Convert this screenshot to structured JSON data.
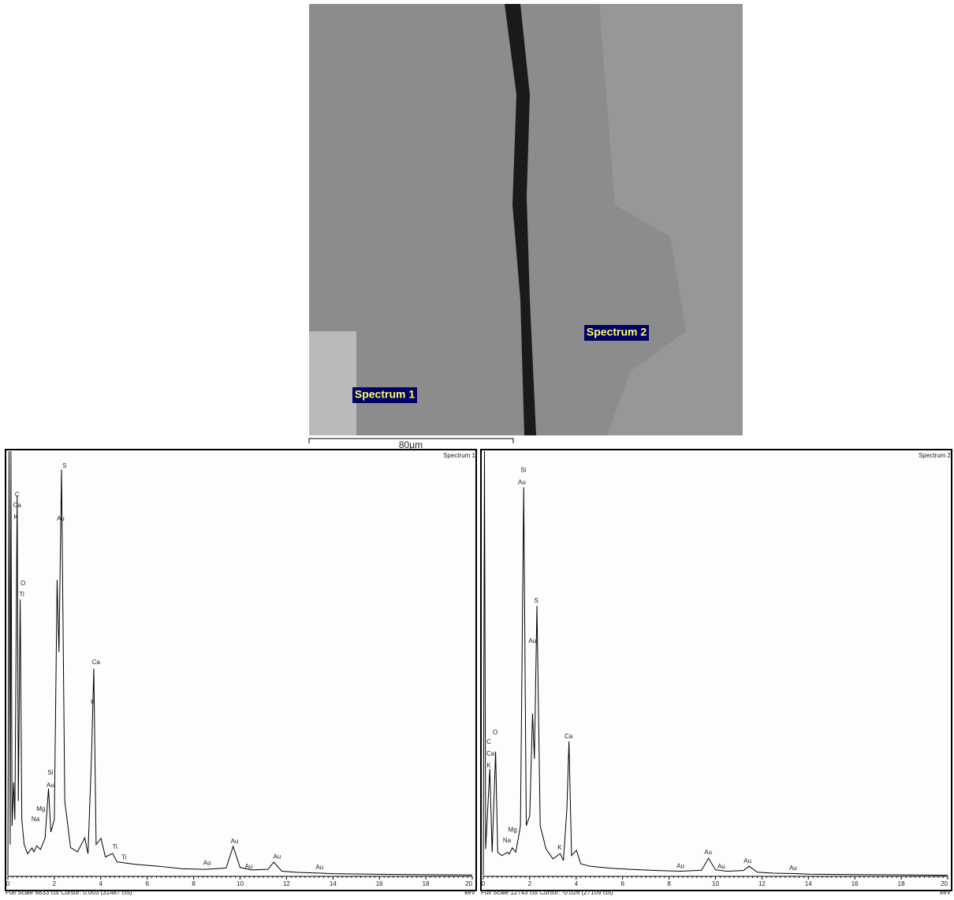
{
  "image": {
    "labels": [
      "Spectrum 1",
      "Spectrum 2"
    ],
    "scale_bar": "80µm"
  },
  "chart_data": [
    {
      "type": "line",
      "title": "Spectrum 1",
      "xlabel": "keV",
      "footer": "Full Scale 6833 cts Cursor: 0.003  (31487 cts)",
      "color": "#000000",
      "xlim": [
        0,
        20
      ],
      "ylim": [
        0,
        6833
      ],
      "xticks": [
        0,
        2,
        4,
        6,
        8,
        10,
        12,
        14,
        16,
        18,
        20
      ],
      "x": [
        0,
        0.05,
        0.1,
        0.13,
        0.18,
        0.25,
        0.3,
        0.4,
        0.45,
        0.53,
        0.6,
        0.7,
        0.85,
        1.04,
        1.12,
        1.25,
        1.4,
        1.6,
        1.75,
        1.85,
        2.0,
        2.12,
        2.2,
        2.31,
        2.45,
        2.7,
        3.0,
        3.31,
        3.45,
        3.6,
        3.7,
        3.8,
        4.01,
        4.2,
        4.51,
        4.7,
        5.5,
        6.5,
        7.5,
        8.5,
        9.4,
        9.7,
        10.0,
        10.5,
        11.2,
        11.45,
        11.8,
        12.5,
        13.4,
        14,
        16,
        18,
        20
      ],
      "values": [
        0,
        6833,
        500,
        6833,
        800,
        1500,
        900,
        6120,
        1200,
        4445,
        900,
        500,
        350,
        445,
        380,
        480,
        420,
        600,
        1400,
        700,
        900,
        4760,
        3600,
        6540,
        1200,
        450,
        380,
        610,
        350,
        1900,
        3330,
        500,
        600,
        300,
        355,
        220,
        180,
        150,
        110,
        100,
        120,
        470,
        130,
        90,
        100,
        215,
        70,
        50,
        40,
        30,
        20,
        15,
        10
      ],
      "annotations": [
        {
          "text": "C",
          "x": 0.4,
          "y": 6130
        },
        {
          "text": "Ca",
          "x": 0.4,
          "y": 5960
        },
        {
          "text": "K",
          "x": 0.35,
          "y": 5770
        },
        {
          "text": "O",
          "x": 0.65,
          "y": 4700
        },
        {
          "text": "Ti",
          "x": 0.6,
          "y": 4520
        },
        {
          "text": "S",
          "x": 2.44,
          "y": 6590
        },
        {
          "text": "Au",
          "x": 2.27,
          "y": 5740
        },
        {
          "text": "Ca",
          "x": 3.8,
          "y": 3430
        },
        {
          "text": "K",
          "x": 3.66,
          "y": 2790
        },
        {
          "text": "Si",
          "x": 1.83,
          "y": 1650
        },
        {
          "text": "Au",
          "x": 1.83,
          "y": 1450
        },
        {
          "text": "Mg",
          "x": 1.42,
          "y": 1070
        },
        {
          "text": "Na",
          "x": 1.19,
          "y": 900
        },
        {
          "text": "Ti",
          "x": 4.61,
          "y": 460
        },
        {
          "text": "Ti",
          "x": 5.0,
          "y": 290
        },
        {
          "text": "Au",
          "x": 8.58,
          "y": 200
        },
        {
          "text": "Au",
          "x": 9.76,
          "y": 550
        },
        {
          "text": "Au",
          "x": 10.37,
          "y": 140
        },
        {
          "text": "Au",
          "x": 11.59,
          "y": 300
        },
        {
          "text": "Au",
          "x": 13.42,
          "y": 130
        }
      ]
    },
    {
      "type": "line",
      "title": "Spectrum 2",
      "xlabel": "keV",
      "footer": "Full Scale 12743 cts Cursor: -0.026  (27109 cts)",
      "color": "#000000",
      "xlim": [
        0,
        20
      ],
      "ylim": [
        0,
        12743
      ],
      "xticks": [
        0,
        2,
        4,
        6,
        8,
        10,
        12,
        14,
        16,
        18,
        20
      ],
      "x": [
        0,
        0.05,
        0.1,
        0.28,
        0.38,
        0.53,
        0.62,
        0.8,
        1.04,
        1.12,
        1.25,
        1.4,
        1.6,
        1.74,
        1.85,
        2.0,
        2.12,
        2.2,
        2.31,
        2.45,
        2.7,
        3.0,
        3.31,
        3.45,
        3.6,
        3.69,
        3.8,
        4.01,
        4.2,
        4.6,
        5.5,
        6.5,
        7.5,
        8.5,
        9.4,
        9.7,
        10.0,
        10.5,
        11.2,
        11.45,
        11.8,
        12.5,
        13.4,
        14,
        16,
        18,
        20
      ],
      "values": [
        0,
        12743,
        800,
        3200,
        700,
        3720,
        700,
        600,
        700,
        650,
        830,
        700,
        1500,
        11660,
        1500,
        1800,
        4860,
        3500,
        8100,
        1500,
        800,
        500,
        660,
        450,
        2000,
        4030,
        600,
        760,
        350,
        280,
        220,
        180,
        150,
        130,
        160,
        520,
        170,
        130,
        150,
        280,
        100,
        70,
        60,
        40,
        30,
        20,
        10
      ],
      "annotations": [
        {
          "text": "C",
          "x": 0.24,
          "y": 4000
        },
        {
          "text": "Ca",
          "x": 0.31,
          "y": 3650
        },
        {
          "text": "K",
          "x": 0.24,
          "y": 3290
        },
        {
          "text": "O",
          "x": 0.51,
          "y": 4290
        },
        {
          "text": "Mg",
          "x": 1.26,
          "y": 1370
        },
        {
          "text": "Na",
          "x": 1.02,
          "y": 1040
        },
        {
          "text": "Si",
          "x": 1.73,
          "y": 12160
        },
        {
          "text": "Au",
          "x": 1.66,
          "y": 11800
        },
        {
          "text": "S",
          "x": 2.28,
          "y": 8250
        },
        {
          "text": "Au",
          "x": 2.11,
          "y": 7040
        },
        {
          "text": "Ca",
          "x": 3.67,
          "y": 4170
        },
        {
          "text": "K",
          "x": 3.29,
          "y": 830
        },
        {
          "text": "Au",
          "x": 9.68,
          "y": 690
        },
        {
          "text": "Au",
          "x": 8.49,
          "y": 280
        },
        {
          "text": "Au",
          "x": 10.25,
          "y": 260
        },
        {
          "text": "Au",
          "x": 11.38,
          "y": 430
        },
        {
          "text": "Au",
          "x": 13.34,
          "y": 210
        }
      ]
    }
  ]
}
